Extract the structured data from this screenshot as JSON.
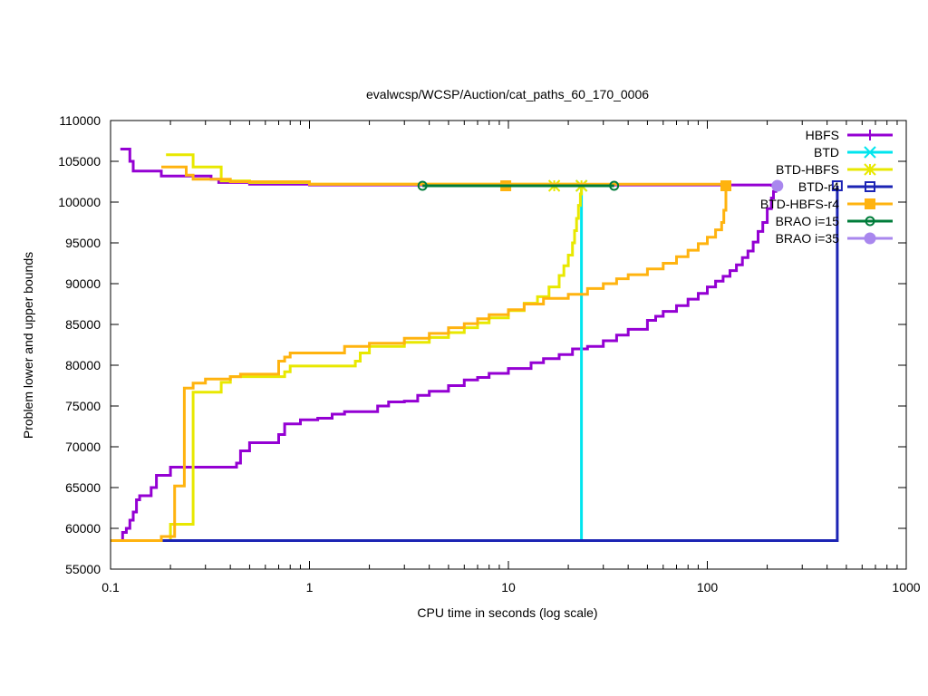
{
  "chart_data": {
    "type": "line",
    "title": "evalwcsp/WCSP/Auction/cat_paths_60_170_0006",
    "xlabel": "CPU time in seconds (log scale)",
    "ylabel": "Problem lower and upper bounds",
    "xscale": "log",
    "xlim": [
      0.1,
      1000
    ],
    "ylim": [
      55000,
      110000
    ],
    "xticks": [
      0.1,
      1,
      10,
      100,
      1000
    ],
    "xtick_labels": [
      "0.1",
      "1",
      "10",
      "100",
      "1000"
    ],
    "yticks": [
      55000,
      60000,
      65000,
      70000,
      75000,
      80000,
      85000,
      90000,
      95000,
      100000,
      105000,
      110000
    ],
    "ytick_labels": [
      "55000",
      "60000",
      "65000",
      "70000",
      "75000",
      "80000",
      "85000",
      "90000",
      "95000",
      "100000",
      "105000",
      "110000"
    ],
    "legend_position": "top-right",
    "series": [
      {
        "name": "HBFS",
        "color": "#9400d3",
        "marker": "plus",
        "upper": [
          [
            0.112,
            106500
          ],
          [
            0.12,
            106500
          ],
          [
            0.125,
            105000
          ],
          [
            0.13,
            103800
          ],
          [
            0.17,
            103800
          ],
          [
            0.18,
            103200
          ],
          [
            0.3,
            103200
          ],
          [
            0.32,
            102800
          ],
          [
            0.35,
            102400
          ],
          [
            0.5,
            102200
          ],
          [
            1,
            102100
          ],
          [
            221,
            102000
          ]
        ],
        "lower": [
          [
            0.112,
            58500
          ],
          [
            0.115,
            59500
          ],
          [
            0.12,
            60000
          ],
          [
            0.125,
            61000
          ],
          [
            0.13,
            62000
          ],
          [
            0.135,
            63500
          ],
          [
            0.14,
            64000
          ],
          [
            0.16,
            65000
          ],
          [
            0.17,
            66500
          ],
          [
            0.2,
            67500
          ],
          [
            0.4,
            67500
          ],
          [
            0.43,
            68000
          ],
          [
            0.45,
            69500
          ],
          [
            0.5,
            70500
          ],
          [
            0.65,
            70500
          ],
          [
            0.7,
            71500
          ],
          [
            0.75,
            72800
          ],
          [
            0.85,
            72800
          ],
          [
            0.9,
            73300
          ],
          [
            1.1,
            73500
          ],
          [
            1.3,
            74000
          ],
          [
            1.5,
            74300
          ],
          [
            2,
            74300
          ],
          [
            2.2,
            75000
          ],
          [
            2.5,
            75500
          ],
          [
            3,
            75600
          ],
          [
            3.5,
            76300
          ],
          [
            4,
            76800
          ],
          [
            5,
            77500
          ],
          [
            6,
            78200
          ],
          [
            7,
            78500
          ],
          [
            8,
            79000
          ],
          [
            10,
            79600
          ],
          [
            13,
            80300
          ],
          [
            15,
            80800
          ],
          [
            18,
            81300
          ],
          [
            21,
            82000
          ],
          [
            25,
            82300
          ],
          [
            30,
            83000
          ],
          [
            35,
            83700
          ],
          [
            40,
            84400
          ],
          [
            50,
            85500
          ],
          [
            55,
            86000
          ],
          [
            60,
            86600
          ],
          [
            70,
            87300
          ],
          [
            80,
            88100
          ],
          [
            90,
            88800
          ],
          [
            100,
            89600
          ],
          [
            110,
            90300
          ],
          [
            120,
            90900
          ],
          [
            130,
            91600
          ],
          [
            140,
            92300
          ],
          [
            150,
            93200
          ],
          [
            160,
            94000
          ],
          [
            170,
            95100
          ],
          [
            180,
            96400
          ],
          [
            190,
            97500
          ],
          [
            200,
            99200
          ],
          [
            210,
            100500
          ],
          [
            215,
            101300
          ],
          [
            221,
            102000
          ]
        ],
        "points": [
          [
            221,
            102000
          ]
        ]
      },
      {
        "name": "BTD",
        "color": "#00e5ee",
        "marker": "cross",
        "upper": [
          [
            23.3,
            102000
          ]
        ],
        "lower": [
          [
            23.3,
            58500
          ],
          [
            23.3,
            102000
          ]
        ],
        "points": [
          [
            23.3,
            102000
          ]
        ]
      },
      {
        "name": "BTD-HBFS",
        "color": "#e8e800",
        "marker": "star",
        "upper": [
          [
            0.19,
            105800
          ],
          [
            0.25,
            105800
          ],
          [
            0.26,
            104300
          ],
          [
            0.35,
            104300
          ],
          [
            0.36,
            102600
          ],
          [
            0.5,
            102400
          ],
          [
            1,
            102200
          ],
          [
            23.3,
            102000
          ]
        ],
        "lower": [
          [
            0.17,
            58500
          ],
          [
            0.19,
            58500
          ],
          [
            0.2,
            60500
          ],
          [
            0.25,
            60500
          ],
          [
            0.26,
            76700
          ],
          [
            0.35,
            76700
          ],
          [
            0.36,
            77900
          ],
          [
            0.4,
            78600
          ],
          [
            0.7,
            78600
          ],
          [
            0.75,
            79200
          ],
          [
            0.8,
            79900
          ],
          [
            1.6,
            79900
          ],
          [
            1.7,
            80500
          ],
          [
            1.8,
            81500
          ],
          [
            2,
            82300
          ],
          [
            3,
            82800
          ],
          [
            4,
            83400
          ],
          [
            5,
            84000
          ],
          [
            6,
            84600
          ],
          [
            7,
            85200
          ],
          [
            8,
            85800
          ],
          [
            10,
            86700
          ],
          [
            12,
            87600
          ],
          [
            14,
            88400
          ],
          [
            16,
            89600
          ],
          [
            18,
            91000
          ],
          [
            19,
            92200
          ],
          [
            20,
            93500
          ],
          [
            21,
            95000
          ],
          [
            21.5,
            96500
          ],
          [
            22,
            98000
          ],
          [
            22.5,
            99600
          ],
          [
            23,
            101000
          ],
          [
            23.3,
            102000
          ]
        ],
        "points": [
          [
            17,
            102000
          ],
          [
            23.3,
            102000
          ]
        ]
      },
      {
        "name": "BTD-r4",
        "color": "#1c24b4",
        "marker": "square",
        "upper": [
          [
            450,
            102000
          ]
        ],
        "lower": [
          [
            0.17,
            58500
          ],
          [
            450,
            58500
          ],
          [
            450,
            102000
          ]
        ],
        "points": [
          [
            450,
            102000
          ]
        ]
      },
      {
        "name": "BTD-HBFS-r4",
        "color": "#ffb30f",
        "marker": "filled-square",
        "upper": [
          [
            0.18,
            104300
          ],
          [
            0.23,
            104300
          ],
          [
            0.24,
            103300
          ],
          [
            0.26,
            102800
          ],
          [
            0.4,
            102500
          ],
          [
            1,
            102200
          ],
          [
            124,
            102000
          ]
        ],
        "lower": [
          [
            0.1,
            58500
          ],
          [
            0.17,
            58500
          ],
          [
            0.18,
            59000
          ],
          [
            0.2,
            59000
          ],
          [
            0.21,
            65200
          ],
          [
            0.23,
            65200
          ],
          [
            0.235,
            77200
          ],
          [
            0.26,
            77800
          ],
          [
            0.3,
            78300
          ],
          [
            0.4,
            78600
          ],
          [
            0.45,
            78900
          ],
          [
            0.65,
            78900
          ],
          [
            0.7,
            80500
          ],
          [
            0.75,
            81000
          ],
          [
            0.8,
            81500
          ],
          [
            1.2,
            81500
          ],
          [
            1.5,
            82300
          ],
          [
            2,
            82700
          ],
          [
            3,
            83300
          ],
          [
            4,
            83900
          ],
          [
            5,
            84600
          ],
          [
            6,
            85100
          ],
          [
            7,
            85700
          ],
          [
            8,
            86200
          ],
          [
            10,
            86800
          ],
          [
            12,
            87500
          ],
          [
            15,
            88200
          ],
          [
            20,
            88700
          ],
          [
            25,
            89400
          ],
          [
            30,
            90000
          ],
          [
            35,
            90600
          ],
          [
            40,
            91100
          ],
          [
            50,
            91800
          ],
          [
            60,
            92500
          ],
          [
            70,
            93300
          ],
          [
            80,
            94100
          ],
          [
            90,
            94900
          ],
          [
            100,
            95700
          ],
          [
            110,
            96600
          ],
          [
            118,
            97500
          ],
          [
            121,
            99000
          ],
          [
            124,
            101000
          ],
          [
            124,
            102000
          ]
        ],
        "points": [
          [
            9.7,
            102000
          ],
          [
            124,
            102000
          ]
        ]
      },
      {
        "name": "BRAO i=15",
        "color": "#007c3a",
        "marker": "circle",
        "upper": [
          [
            3.7,
            102000
          ],
          [
            34,
            102000
          ]
        ],
        "lower": [],
        "points": [
          [
            3.7,
            102000
          ],
          [
            34,
            102000
          ]
        ]
      },
      {
        "name": "BRAO i=35",
        "color": "#a987ee",
        "marker": "filled-circle",
        "upper": [],
        "lower": [],
        "points": [
          [
            225,
            102000
          ]
        ]
      }
    ]
  }
}
